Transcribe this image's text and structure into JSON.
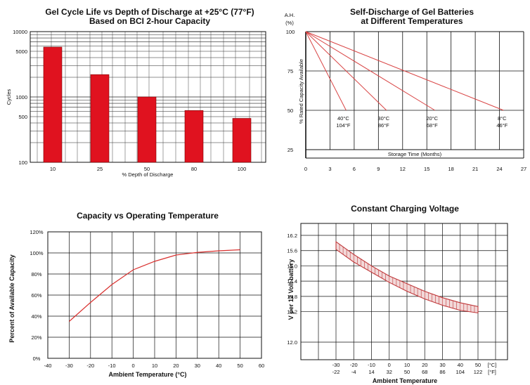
{
  "chart_data": [
    {
      "type": "bar",
      "title": "Gel Cycle Life vs Depth of Discharge at +25°C (77°F)",
      "subtitle": "Based on BCI 2-hour Capacity",
      "xlabel": "% Depth of Discharge",
      "ylabel": "Cycles",
      "categories": [
        "10",
        "25",
        "50",
        "80",
        "100"
      ],
      "values": [
        5800,
        2200,
        1000,
        620,
        470
      ],
      "ylim": [
        100,
        10000
      ],
      "yscale": "log",
      "yticks": [
        "100",
        "500",
        "1000",
        "5000",
        "10000"
      ],
      "grid": true,
      "colors": {
        "bar": "#e0121f"
      }
    },
    {
      "type": "line",
      "title": "Self-Discharge of Gel Batteries",
      "subtitle": "at Different Temperatures",
      "xlabel": "Storage Time (Months)",
      "ylabel": "% Rated Capacity Available",
      "yunit": "A.H.\n(%)",
      "xticks": [
        "0",
        "3",
        "6",
        "9",
        "12",
        "15",
        "18",
        "21",
        "24",
        "27"
      ],
      "yticks": [
        "25",
        "50",
        "75",
        "100"
      ],
      "xlim": [
        0,
        27
      ],
      "ylim": [
        25,
        100
      ],
      "series": [
        {
          "name": "40°C 104°F",
          "x": [
            0,
            5
          ],
          "y": [
            100,
            50
          ]
        },
        {
          "name": "30°C 86°F",
          "x": [
            0,
            10
          ],
          "y": [
            100,
            50
          ]
        },
        {
          "name": "20°C 68°F",
          "x": [
            0,
            16
          ],
          "y": [
            100,
            50
          ]
        },
        {
          "name": "8°C 46°F",
          "x": [
            0,
            24.5
          ],
          "y": [
            100,
            50
          ]
        }
      ],
      "labels": [
        {
          "c": "40°C",
          "f": "104°F"
        },
        {
          "c": "30°C",
          "f": "86°F"
        },
        {
          "c": "20°C",
          "f": "68°F"
        },
        {
          "c": "8°C",
          "f": "46°F"
        }
      ],
      "grid": true,
      "colors": {
        "line": "#d94545"
      }
    },
    {
      "type": "line",
      "title": "Capacity vs Operating Temperature",
      "xlabel": "Ambient Temperature (°C)",
      "ylabel": "Percent of Available Capacity",
      "xticks": [
        "-40",
        "-30",
        "-20",
        "-10",
        "0",
        "10",
        "20",
        "30",
        "40",
        "50",
        "60"
      ],
      "yticks": [
        "0%",
        "20%",
        "40%",
        "60%",
        "80%",
        "100%",
        "120%"
      ],
      "xlim": [
        -40,
        60
      ],
      "ylim": [
        0,
        120
      ],
      "series": [
        {
          "x": [
            -30,
            -20,
            -10,
            0,
            10,
            20,
            30,
            40,
            50
          ],
          "y": [
            35,
            53,
            70,
            84,
            92,
            98,
            100.5,
            102,
            103
          ]
        }
      ],
      "grid": true,
      "colors": {
        "line": "#d9302e"
      }
    },
    {
      "type": "area",
      "title": "Constant Charging Voltage",
      "xlabel": "Ambient Temperature",
      "ylabel": "V per 12 Volt battery",
      "xticks_c": [
        "-30",
        "-20",
        "-10",
        "0",
        "10",
        "20",
        "30",
        "40",
        "50"
      ],
      "xticks_f": [
        "-22",
        "-4",
        "14",
        "32",
        "50",
        "68",
        "86",
        "104",
        "122"
      ],
      "xunit_c": "[°C]",
      "xunit_f": "[°F]",
      "yticks": [
        "12.0",
        "13.2",
        "13.8",
        "14.4",
        "15.0",
        "15.6",
        "16.2"
      ],
      "xlim": [
        -30,
        50
      ],
      "ylim": [
        12.0,
        16.2
      ],
      "series": [
        {
          "name": "upper",
          "x": [
            -30,
            -20,
            -10,
            0,
            10,
            20,
            30,
            40,
            50
          ],
          "y": [
            15.95,
            15.45,
            15.0,
            14.6,
            14.3,
            14.0,
            13.75,
            13.55,
            13.4
          ]
        },
        {
          "name": "lower",
          "x": [
            -30,
            -20,
            -10,
            0,
            10,
            20,
            30,
            40,
            50
          ],
          "y": [
            15.65,
            15.15,
            14.75,
            14.35,
            14.0,
            13.7,
            13.45,
            13.25,
            13.15
          ]
        }
      ],
      "grid": true,
      "colors": {
        "band": "#c0393b"
      }
    }
  ]
}
